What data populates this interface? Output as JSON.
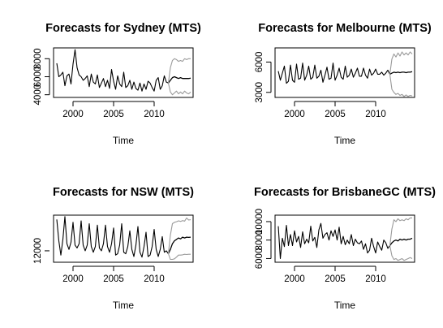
{
  "colors": {
    "history": "#000000",
    "interval": "#9a9a9a",
    "axis": "#000000",
    "background": "#ffffff"
  },
  "chart_data": [
    {
      "type": "line",
      "title": "Forecasts for Sydney (MTS)",
      "xlabel": "Time",
      "ylabel": "",
      "xlim": [
        1997.6,
        2014.8
      ],
      "ylim": [
        3700,
        9200
      ],
      "xticks": [
        2000,
        2005,
        2010
      ],
      "xtick_labels": [
        "2000",
        "2005",
        "2010"
      ],
      "yticks": [
        4000,
        6000,
        8000
      ],
      "ytick_labels": [
        "4000",
        "6000",
        "8000"
      ],
      "history_x": [
        1998.0,
        1998.25,
        1998.5,
        1998.75,
        1999.0,
        1999.25,
        1999.5,
        1999.75,
        2000.0,
        2000.25,
        2000.5,
        2000.75,
        2001.0,
        2001.25,
        2001.5,
        2001.75,
        2002.0,
        2002.25,
        2002.5,
        2002.75,
        2003.0,
        2003.25,
        2003.5,
        2003.75,
        2004.0,
        2004.25,
        2004.5,
        2004.75,
        2005.0,
        2005.25,
        2005.5,
        2005.75,
        2006.0,
        2006.25,
        2006.5,
        2006.75,
        2007.0,
        2007.25,
        2007.5,
        2007.75,
        2008.0,
        2008.25,
        2008.5,
        2008.75,
        2009.0,
        2009.25,
        2009.5,
        2009.75,
        2010.0,
        2010.25,
        2010.5,
        2010.75,
        2011.0,
        2011.25,
        2011.5,
        2011.75
      ],
      "history_y": [
        7500,
        6000,
        6200,
        6500,
        5000,
        6100,
        6300,
        5200,
        7400,
        9000,
        7000,
        6200,
        6000,
        5600,
        5800,
        6100,
        4900,
        6300,
        5400,
        5200,
        6200,
        4800,
        5300,
        5800,
        4900,
        5600,
        4700,
        6800,
        5500,
        4600,
        6100,
        5200,
        4900,
        6500,
        4800,
        5000,
        5600,
        4600,
        5400,
        4700,
        4500,
        5300,
        4400,
        5200,
        4600,
        5500,
        5300,
        4800,
        4400,
        5600,
        5900,
        4600,
        5000,
        6100,
        5400,
        5300
      ],
      "series": [
        {
          "values_x": [
            2011.75,
            2012.0,
            2012.25,
            2012.5,
            2012.75,
            2013.0,
            2013.25,
            2013.5,
            2013.75,
            2014.0,
            2014.25,
            2014.5
          ],
          "values_y": [
            5300,
            5600,
            5900,
            6000,
            5900,
            5800,
            5900,
            5800,
            5800,
            5800,
            5800,
            5850
          ]
        },
        {
          "values_x": [
            2011.75,
            2012.0,
            2012.25,
            2012.5,
            2012.75,
            2013.0,
            2013.25,
            2013.5,
            2013.75,
            2014.0,
            2014.25,
            2014.5
          ],
          "values_y": [
            5300,
            7000,
            7800,
            8000,
            7900,
            7700,
            7800,
            7700,
            8000,
            7900,
            8000,
            8000
          ]
        },
        {
          "values_x": [
            2011.75,
            2012.0,
            2012.25,
            2012.5,
            2012.75,
            2013.0,
            2013.25,
            2013.5,
            2013.75,
            2014.0,
            2014.25,
            2014.5
          ],
          "values_y": [
            5300,
            4300,
            4000,
            4200,
            4400,
            4100,
            4300,
            4100,
            4400,
            4200,
            4100,
            4300
          ]
        }
      ]
    },
    {
      "type": "line",
      "title": "Forecasts for Melbourne (MTS)",
      "xlabel": "Time",
      "ylabel": "",
      "xlim": [
        1997.6,
        2014.8
      ],
      "ylim": [
        2500,
        7400
      ],
      "xticks": [
        2000,
        2005,
        2010
      ],
      "xtick_labels": [
        "2000",
        "2005",
        "2010"
      ],
      "yticks": [
        3000,
        6000
      ],
      "ytick_labels": [
        "3000",
        "6000"
      ],
      "history_x": [
        1998.0,
        1998.25,
        1998.5,
        1998.75,
        1999.0,
        1999.25,
        1999.5,
        1999.75,
        2000.0,
        2000.25,
        2000.5,
        2000.75,
        2001.0,
        2001.25,
        2001.5,
        2001.75,
        2002.0,
        2002.25,
        2002.5,
        2002.75,
        2003.0,
        2003.25,
        2003.5,
        2003.75,
        2004.0,
        2004.25,
        2004.5,
        2004.75,
        2005.0,
        2005.25,
        2005.5,
        2005.75,
        2006.0,
        2006.25,
        2006.5,
        2006.75,
        2007.0,
        2007.25,
        2007.5,
        2007.75,
        2008.0,
        2008.25,
        2008.5,
        2008.75,
        2009.0,
        2009.25,
        2009.5,
        2009.75,
        2010.0,
        2010.25,
        2010.5,
        2010.75,
        2011.0,
        2011.25,
        2011.5,
        2011.75
      ],
      "history_y": [
        5100,
        4200,
        4900,
        5600,
        3900,
        4100,
        5700,
        4200,
        4000,
        5800,
        4300,
        4400,
        5900,
        4200,
        4700,
        5600,
        4300,
        4500,
        5700,
        4400,
        4600,
        5200,
        4000,
        4700,
        5500,
        4300,
        4400,
        5900,
        4200,
        4700,
        5400,
        4500,
        4300,
        5600,
        4500,
        4700,
        5300,
        4500,
        4900,
        5400,
        4600,
        4600,
        5400,
        4700,
        4400,
        5300,
        4700,
        4900,
        5300,
        4800,
        4800,
        5000,
        4700,
        4900,
        5200,
        4800
      ],
      "series": [
        {
          "values_x": [
            2011.75,
            2012.0,
            2012.25,
            2012.5,
            2012.75,
            2013.0,
            2013.25,
            2013.5,
            2013.75,
            2014.0,
            2014.25,
            2014.5
          ],
          "values_y": [
            4800,
            4900,
            5000,
            4950,
            5000,
            4950,
            5000,
            5000,
            4950,
            5000,
            5000,
            5050
          ]
        },
        {
          "values_x": [
            2011.75,
            2012.0,
            2012.25,
            2012.5,
            2012.75,
            2013.0,
            2013.25,
            2013.5,
            2013.75,
            2014.0,
            2014.25,
            2014.5
          ],
          "values_y": [
            4800,
            6300,
            6800,
            6500,
            6900,
            6600,
            7000,
            6700,
            6900,
            6700,
            7000,
            6800
          ]
        },
        {
          "values_x": [
            2011.75,
            2012.0,
            2012.25,
            2012.5,
            2012.75,
            2013.0,
            2013.25,
            2013.5,
            2013.75,
            2014.0,
            2014.25,
            2014.5
          ],
          "values_y": [
            4800,
            3300,
            3000,
            2800,
            2900,
            2700,
            2800,
            2600,
            2750,
            2600,
            2700,
            2650
          ]
        }
      ]
    },
    {
      "type": "line",
      "title": "Forecasts for NSW (MTS)",
      "xlabel": "Time",
      "ylabel": "",
      "xlim": [
        1997.6,
        2014.8
      ],
      "ylim": [
        8000,
        24500
      ],
      "xticks": [
        2000,
        2005,
        2010
      ],
      "xtick_labels": [
        "2000",
        "2005",
        "2010"
      ],
      "yticks": [
        12000
      ],
      "ytick_labels": [
        "12000"
      ],
      "history_x": [
        1998.0,
        1998.25,
        1998.5,
        1998.75,
        1999.0,
        1999.25,
        1999.5,
        1999.75,
        2000.0,
        2000.25,
        2000.5,
        2000.75,
        2001.0,
        2001.25,
        2001.5,
        2001.75,
        2002.0,
        2002.25,
        2002.5,
        2002.75,
        2003.0,
        2003.25,
        2003.5,
        2003.75,
        2004.0,
        2004.25,
        2004.5,
        2004.75,
        2005.0,
        2005.25,
        2005.5,
        2005.75,
        2006.0,
        2006.25,
        2006.5,
        2006.75,
        2007.0,
        2007.25,
        2007.5,
        2007.75,
        2008.0,
        2008.25,
        2008.5,
        2008.75,
        2009.0,
        2009.25,
        2009.5,
        2009.75,
        2010.0,
        2010.25,
        2010.5,
        2010.75,
        2011.0,
        2011.25,
        2011.5,
        2011.75
      ],
      "history_y": [
        23000,
        15500,
        10500,
        16000,
        24000,
        14500,
        12500,
        15000,
        22000,
        14000,
        13000,
        14500,
        22500,
        14000,
        12000,
        14000,
        21500,
        13500,
        11500,
        13500,
        21000,
        13000,
        12000,
        14500,
        21000,
        13500,
        11500,
        14500,
        20000,
        10500,
        11000,
        14000,
        21500,
        11500,
        11000,
        13500,
        19000,
        12500,
        10000,
        14000,
        20500,
        11500,
        9800,
        13500,
        18500,
        10000,
        10500,
        13500,
        19500,
        12500,
        10000,
        12500,
        17000,
        11500,
        12000,
        11000
      ],
      "series": [
        {
          "values_x": [
            2011.75,
            2012.0,
            2012.25,
            2012.5,
            2012.75,
            2013.0,
            2013.25,
            2013.5,
            2013.75,
            2014.0,
            2014.25,
            2014.5
          ],
          "values_y": [
            11000,
            12500,
            14500,
            15500,
            16000,
            16500,
            16200,
            16800,
            16500,
            16800,
            16700,
            16800
          ]
        },
        {
          "values_x": [
            2011.75,
            2012.0,
            2012.25,
            2012.5,
            2012.75,
            2013.0,
            2013.25,
            2013.5,
            2013.75,
            2014.0,
            2014.25,
            2014.5
          ],
          "values_y": [
            11000,
            17500,
            21500,
            22000,
            22200,
            22500,
            22300,
            22600,
            22400,
            23500,
            22800,
            22900
          ]
        },
        {
          "values_x": [
            2011.75,
            2012.0,
            2012.25,
            2012.5,
            2012.75,
            2013.0,
            2013.25,
            2013.5,
            2013.75,
            2014.0,
            2014.25,
            2014.5
          ],
          "values_y": [
            11000,
            9000,
            9000,
            9200,
            9800,
            10500,
            10500,
            10600,
            10800,
            10700,
            10800,
            10800
          ]
        }
      ]
    },
    {
      "type": "line",
      "title": "Forecasts for BrisbaneGC (MTS)",
      "xlabel": "Time",
      "ylabel": "",
      "xlim": [
        1997.6,
        2014.8
      ],
      "ylim": [
        5600,
        10700
      ],
      "xticks": [
        2000,
        2005,
        2010
      ],
      "xtick_labels": [
        "2000",
        "2005",
        "2010"
      ],
      "yticks": [
        6000,
        8000,
        10000
      ],
      "ytick_labels": [
        "6000",
        "8000",
        "10000"
      ],
      "history_x": [
        1998.0,
        1998.25,
        1998.5,
        1998.75,
        1999.0,
        1999.25,
        1999.5,
        1999.75,
        2000.0,
        2000.25,
        2000.5,
        2000.75,
        2001.0,
        2001.25,
        2001.5,
        2001.75,
        2002.0,
        2002.25,
        2002.5,
        2002.75,
        2003.0,
        2003.25,
        2003.5,
        2003.75,
        2004.0,
        2004.25,
        2004.5,
        2004.75,
        2005.0,
        2005.25,
        2005.5,
        2005.75,
        2006.0,
        2006.25,
        2006.5,
        2006.75,
        2007.0,
        2007.25,
        2007.5,
        2007.75,
        2008.0,
        2008.25,
        2008.5,
        2008.75,
        2009.0,
        2009.25,
        2009.5,
        2009.75,
        2010.0,
        2010.25,
        2010.5,
        2010.75,
        2011.0,
        2011.25,
        2011.5,
        2011.75
      ],
      "history_y": [
        9500,
        6000,
        8200,
        7300,
        9600,
        7400,
        8600,
        7400,
        9000,
        7800,
        8400,
        7200,
        8900,
        7600,
        8100,
        7700,
        9500,
        7900,
        8300,
        7200,
        9100,
        9800,
        8200,
        8600,
        8800,
        8000,
        9000,
        8400,
        9100,
        8000,
        9400,
        7600,
        8400,
        7500,
        8000,
        7600,
        8600,
        7400,
        8100,
        7700,
        7600,
        7900,
        7000,
        7600,
        6600,
        6900,
        8200,
        7300,
        6600,
        7800,
        7300,
        6900,
        8000,
        7700,
        7100,
        7400
      ],
      "series": [
        {
          "values_x": [
            2011.75,
            2012.0,
            2012.25,
            2012.5,
            2012.75,
            2013.0,
            2013.25,
            2013.5,
            2013.75,
            2014.0,
            2014.25,
            2014.5
          ],
          "values_y": [
            7400,
            7700,
            7900,
            8000,
            7900,
            8100,
            8000,
            8100,
            8000,
            8100,
            8100,
            8200
          ]
        },
        {
          "values_x": [
            2011.75,
            2012.0,
            2012.25,
            2012.5,
            2012.75,
            2013.0,
            2013.25,
            2013.5,
            2013.75,
            2014.0,
            2014.25,
            2014.5
          ],
          "values_y": [
            7400,
            9200,
            10200,
            10000,
            10300,
            10100,
            10200,
            10100,
            10300,
            10200,
            10400,
            10400
          ]
        },
        {
          "values_x": [
            2011.75,
            2012.0,
            2012.25,
            2012.5,
            2012.75,
            2013.0,
            2013.25,
            2013.5,
            2013.75,
            2014.0,
            2014.25,
            2014.5
          ],
          "values_y": [
            7400,
            6300,
            5900,
            6000,
            5800,
            5900,
            6000,
            5800,
            5900,
            6000,
            6100,
            6000
          ]
        }
      ]
    }
  ]
}
